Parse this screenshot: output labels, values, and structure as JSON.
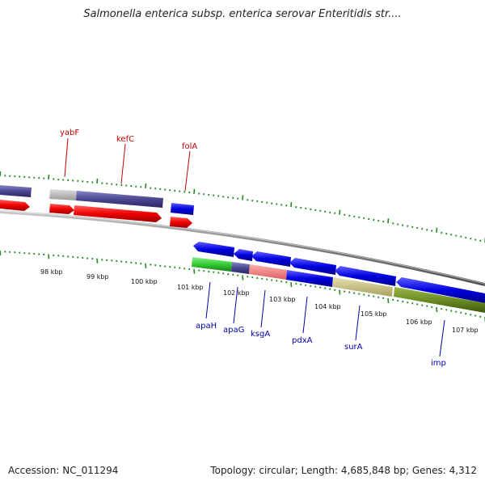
{
  "title": "Salmonella enterica subsp. enterica serovar Enteritidis str....",
  "footer": {
    "accession": "Accession: NC_011294",
    "summary": "Topology: circular; Length: 4,685,848 bp; Genes: 4,312"
  },
  "scale_labels": [
    "98 kbp",
    "99 kbp",
    "100 kbp",
    "101 kbp",
    "102 kbp",
    "103 kbp",
    "104 kbp",
    "105 kbp",
    "106 kbp",
    "107 kbp"
  ],
  "genes_forward": [
    {
      "name": "yabF",
      "color": "#c00000"
    },
    {
      "name": "kefC",
      "color": "#c00000"
    },
    {
      "name": "folA",
      "color": "#c00000"
    }
  ],
  "genes_reverse": [
    {
      "name": "apaH",
      "color": "#0000aa"
    },
    {
      "name": "apaG",
      "color": "#0000aa"
    },
    {
      "name": "ksgA",
      "color": "#0000aa"
    },
    {
      "name": "pdxA",
      "color": "#0000aa"
    },
    {
      "name": "surA",
      "color": "#0000aa"
    },
    {
      "name": "imp",
      "color": "#0000aa"
    }
  ],
  "colors": {
    "cds_forward": "#e80000",
    "cds_reverse": "#0000e0",
    "backbone": "#777777",
    "ticks": "#228b22"
  }
}
